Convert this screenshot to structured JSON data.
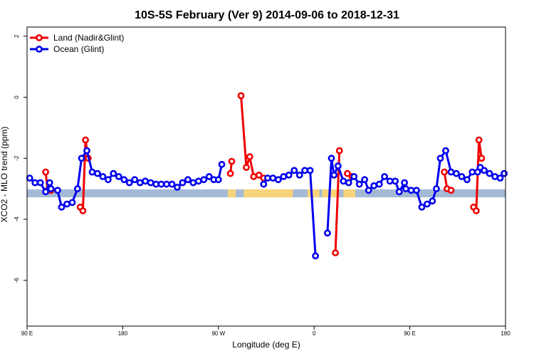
{
  "chart_data": {
    "type": "line",
    "title": "10S-5S February (Ver 9)   2014-09-06 to 2018-12-31",
    "xlabel": "Longitude (deg E)",
    "ylabel": "XCO2 - MLO trend (ppm)",
    "xlim": [
      90,
      450
    ],
    "ylim": [
      -7.5,
      2.3
    ],
    "x_ticks": [
      {
        "value": 90,
        "label": "90 E"
      },
      {
        "value": 162,
        "label": "180"
      },
      {
        "value": 234,
        "label": "90 W"
      },
      {
        "value": 306,
        "label": "0"
      },
      {
        "value": 378,
        "label": "90 E"
      },
      {
        "value": 450,
        "label": "180"
      }
    ],
    "y_ticks": [
      {
        "value": 2,
        "label": "2"
      },
      {
        "value": 0,
        "label": "0"
      },
      {
        "value": -2,
        "label": "-2"
      },
      {
        "value": -4,
        "label": "-4"
      },
      {
        "value": -6,
        "label": "-6"
      }
    ],
    "grid": false,
    "legend_position": "top-left",
    "surface_band": {
      "y_top": -3.02,
      "y_bottom": -3.28,
      "ocean_color": "#a3b9d6",
      "land_color": "#f7d37a",
      "land_ranges": [
        [
          241,
          247
        ],
        [
          253,
          290
        ],
        [
          301,
          310
        ],
        [
          312,
          324
        ],
        [
          328,
          337
        ]
      ]
    },
    "series": [
      {
        "name": "Land (Nadir&Glint)",
        "color": "#ee0000",
        "segments": [
          [
            [
              104,
              -2.45
            ],
            [
              105.5,
              -3.05
            ],
            [
              108,
              -3.05
            ]
          ],
          [
            [
              130,
              -3.6
            ],
            [
              132,
              -3.72
            ],
            [
              134,
              -1.4
            ],
            [
              136,
              -2.0
            ]
          ],
          [
            [
              243,
              -2.5
            ],
            [
              244,
              -2.1
            ]
          ],
          [
            [
              251,
              0.05
            ],
            [
              255,
              -2.3
            ],
            [
              257.5,
              -1.95
            ],
            [
              260.5,
              -2.6
            ],
            [
              264.5,
              -2.55
            ],
            [
              268,
              -2.65
            ]
          ],
          [
            [
              322,
              -5.1
            ],
            [
              325,
              -1.75
            ]
          ],
          [
            [
              331,
              -2.5
            ],
            [
              334.5,
              -2.6
            ]
          ],
          [
            [
              404,
              -2.45
            ],
            [
              406,
              -3.0
            ],
            [
              409,
              -3.05
            ]
          ],
          [
            [
              426,
              -3.6
            ],
            [
              428,
              -3.72
            ],
            [
              430,
              -1.4
            ],
            [
              432,
              -2.0
            ]
          ]
        ]
      },
      {
        "name": "Ocean (Glint)",
        "color": "#0000ee",
        "segments": [
          [
            [
              92,
              -2.65
            ],
            [
              96,
              -2.8
            ],
            [
              100,
              -2.8
            ],
            [
              104,
              -3.1
            ],
            [
              107,
              -2.8
            ],
            [
              108,
              -3.0
            ],
            [
              113,
              -3.05
            ],
            [
              116,
              -3.6
            ],
            [
              120,
              -3.5
            ],
            [
              124,
              -3.45
            ],
            [
              128,
              -3.0
            ],
            [
              131,
              -2.0
            ],
            [
              135,
              -1.75
            ],
            [
              139,
              -2.45
            ],
            [
              143,
              -2.5
            ],
            [
              147,
              -2.6
            ],
            [
              151,
              -2.7
            ],
            [
              155,
              -2.5
            ],
            [
              159,
              -2.6
            ],
            [
              163,
              -2.7
            ],
            [
              167,
              -2.8
            ],
            [
              171,
              -2.7
            ],
            [
              175,
              -2.8
            ],
            [
              179,
              -2.75
            ],
            [
              183,
              -2.8
            ],
            [
              187,
              -2.85
            ],
            [
              191,
              -2.85
            ],
            [
              195,
              -2.85
            ],
            [
              199,
              -2.85
            ],
            [
              203,
              -2.95
            ],
            [
              207,
              -2.8
            ],
            [
              211,
              -2.7
            ],
            [
              215,
              -2.8
            ],
            [
              219,
              -2.75
            ],
            [
              223,
              -2.7
            ],
            [
              227,
              -2.6
            ],
            [
              230.5,
              -2.7
            ],
            [
              234,
              -2.7
            ],
            [
              236.5,
              -2.2
            ]
          ],
          [
            [
              268,
              -2.85
            ],
            [
              271,
              -2.65
            ],
            [
              275,
              -2.65
            ],
            [
              279,
              -2.7
            ],
            [
              283,
              -2.6
            ],
            [
              287,
              -2.55
            ],
            [
              291,
              -2.4
            ],
            [
              295,
              -2.55
            ],
            [
              299,
              -2.4
            ],
            [
              303,
              -2.4
            ],
            [
              307,
              -5.2
            ]
          ],
          [
            [
              316,
              -4.45
            ],
            [
              319,
              -2.0
            ],
            [
              321,
              -2.55
            ],
            [
              324,
              -2.25
            ],
            [
              328,
              -2.75
            ],
            [
              332,
              -2.8
            ],
            [
              336,
              -2.6
            ],
            [
              340,
              -2.85
            ],
            [
              344,
              -2.7
            ],
            [
              347,
              -3.05
            ],
            [
              351,
              -2.9
            ],
            [
              355,
              -2.85
            ],
            [
              359,
              -2.6
            ],
            [
              363,
              -2.75
            ],
            [
              367,
              -2.75
            ],
            [
              370,
              -3.1
            ],
            [
              374,
              -2.8
            ],
            [
              375,
              -3.0
            ],
            [
              379,
              -3.05
            ],
            [
              383,
              -3.05
            ],
            [
              387,
              -3.6
            ],
            [
              391,
              -3.5
            ],
            [
              395,
              -3.4
            ],
            [
              398,
              -3.0
            ],
            [
              401,
              -2.0
            ],
            [
              405,
              -1.75
            ],
            [
              409,
              -2.45
            ],
            [
              413,
              -2.5
            ],
            [
              417,
              -2.6
            ],
            [
              421,
              -2.7
            ],
            [
              425,
              -2.45
            ],
            [
              429,
              -2.45
            ],
            [
              431,
              -2.3
            ],
            [
              434,
              -2.4
            ],
            [
              438,
              -2.5
            ],
            [
              442,
              -2.6
            ],
            [
              446,
              -2.65
            ],
            [
              449,
              -2.5
            ]
          ]
        ]
      }
    ]
  }
}
